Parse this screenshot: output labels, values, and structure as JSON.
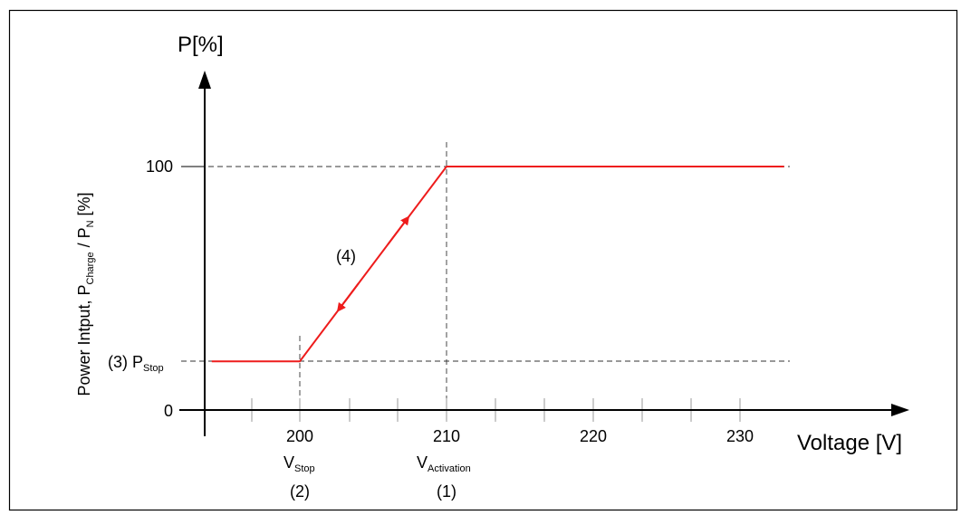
{
  "diagram": {
    "y_axis_title": "P[%]",
    "x_axis_title": "Voltage [V]",
    "rotated_label": {
      "part1": "Power Intput, P",
      "sub1": "Charge",
      "part2": " / P",
      "sub2": "N",
      "part3": " [%]"
    },
    "y_tick_100": "100",
    "y_tick_0": "0",
    "p_stop": {
      "prefix": "(3) P",
      "sub": "Stop"
    },
    "x_ticks": [
      "200",
      "210",
      "220",
      "230"
    ],
    "v_stop": {
      "main": "V",
      "sub": "Stop",
      "ref": "(2)"
    },
    "v_activation": {
      "main": "V",
      "sub": "Activation",
      "ref": "(1)"
    },
    "slope_label": "(4)",
    "colors": {
      "curve": "#ee1c1c",
      "axis": "#000000",
      "border": "#000000"
    }
  },
  "chart_data": {
    "type": "line",
    "series": [
      {
        "x": [
          194,
          200,
          210,
          233
        ],
        "y": [
          20,
          20,
          100,
          100
        ]
      }
    ],
    "v_stop": 200,
    "v_activation": 210,
    "p_max": 100,
    "xlim": [
      194,
      236
    ],
    "ylim": [
      0,
      130
    ]
  }
}
